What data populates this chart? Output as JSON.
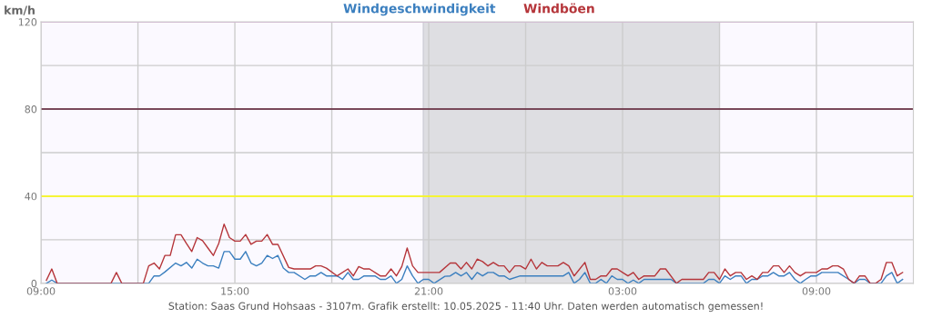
{
  "chart_data": {
    "type": "line",
    "ylabel": "km/h",
    "annotations": [
      "Station: Saas Grund Hohsaas - 3107m. Grafik erstellt: 10.05.2025 - 11:40 Uhr. Daten werden automatisch gemessen!"
    ],
    "series": [
      {
        "name": "Windgeschwindigkeit",
        "color": "#3b7fbf",
        "x": [
          "2025-05-09T09:10",
          "2025-05-09T09:20",
          "2025-05-09T09:30",
          "2025-05-09T12:20",
          "2025-05-09T12:30",
          "2025-05-09T12:40",
          "2025-05-09T12:50",
          "2025-05-09T13:10",
          "2025-05-09T13:20",
          "2025-05-09T13:30",
          "2025-05-09T13:40",
          "2025-05-09T13:50",
          "2025-05-09T14:00",
          "2025-05-09T14:10",
          "2025-05-09T14:20",
          "2025-05-09T14:30",
          "2025-05-09T14:40",
          "2025-05-09T14:50",
          "2025-05-09T15:00",
          "2025-05-09T15:10",
          "2025-05-09T15:20",
          "2025-05-09T15:30",
          "2025-05-09T15:40",
          "2025-05-09T15:50",
          "2025-05-09T16:00",
          "2025-05-09T16:10",
          "2025-05-09T16:20",
          "2025-05-09T16:30",
          "2025-05-09T16:40",
          "2025-05-09T16:50",
          "2025-05-09T17:10",
          "2025-05-09T17:20",
          "2025-05-09T17:30",
          "2025-05-09T17:40",
          "2025-05-09T17:50",
          "2025-05-09T18:10",
          "2025-05-09T18:20",
          "2025-05-09T18:30",
          "2025-05-09T18:40",
          "2025-05-09T18:50",
          "2025-05-09T19:00",
          "2025-05-09T19:20",
          "2025-05-09T19:30",
          "2025-05-09T19:40",
          "2025-05-09T19:50",
          "2025-05-09T20:00",
          "2025-05-09T20:10",
          "2025-05-09T20:20",
          "2025-05-09T20:30",
          "2025-05-09T20:40",
          "2025-05-09T20:50",
          "2025-05-09T21:00",
          "2025-05-09T21:10",
          "2025-05-09T21:30",
          "2025-05-09T21:40",
          "2025-05-09T21:50",
          "2025-05-09T22:00",
          "2025-05-09T22:10",
          "2025-05-09T22:20",
          "2025-05-09T22:30",
          "2025-05-09T22:40",
          "2025-05-09T22:50",
          "2025-05-09T23:00",
          "2025-05-09T23:10",
          "2025-05-09T23:20",
          "2025-05-09T23:30",
          "2025-05-09T23:50",
          "2025-05-10T01:10",
          "2025-05-10T01:20",
          "2025-05-10T01:30",
          "2025-05-10T01:40",
          "2025-05-10T01:50",
          "2025-05-10T02:00",
          "2025-05-10T02:10",
          "2025-05-10T02:20",
          "2025-05-10T02:30",
          "2025-05-10T02:40",
          "2025-05-10T02:50",
          "2025-05-10T03:00",
          "2025-05-10T03:10",
          "2025-05-10T03:20",
          "2025-05-10T03:30",
          "2025-05-10T03:40",
          "2025-05-10T04:30",
          "2025-05-10T04:40",
          "2025-05-10T05:30",
          "2025-05-10T05:40",
          "2025-05-10T05:50",
          "2025-05-10T06:00",
          "2025-05-10T06:10",
          "2025-05-10T06:20",
          "2025-05-10T06:30",
          "2025-05-10T06:40",
          "2025-05-10T06:50",
          "2025-05-10T07:00",
          "2025-05-10T07:10",
          "2025-05-10T07:20",
          "2025-05-10T07:30",
          "2025-05-10T07:40",
          "2025-05-10T07:50",
          "2025-05-10T08:00",
          "2025-05-10T08:10",
          "2025-05-10T08:20",
          "2025-05-10T08:30",
          "2025-05-10T08:40",
          "2025-05-10T08:50",
          "2025-05-10T09:00",
          "2025-05-10T09:10",
          "2025-05-10T09:40",
          "2025-05-10T10:00",
          "2025-05-10T10:10",
          "2025-05-10T10:20",
          "2025-05-10T10:30",
          "2025-05-10T10:40",
          "2025-05-10T11:00",
          "2025-05-10T11:10",
          "2025-05-10T11:20",
          "2025-05-10T11:30",
          "2025-05-10T11:40"
        ],
        "values": [
          0,
          1.5,
          0,
          0,
          3.4,
          3.4,
          5.2,
          9.3,
          8,
          9.6,
          7,
          11.1,
          9.3,
          8,
          8,
          7,
          14.6,
          14.6,
          11.1,
          11.1,
          14.6,
          9.3,
          8,
          9.3,
          12.8,
          11.4,
          12.8,
          7,
          5,
          5,
          1.8,
          3.4,
          3.4,
          5,
          3.4,
          3.4,
          1.8,
          5,
          1.8,
          1.8,
          3.4,
          3.4,
          1.8,
          1.8,
          3.4,
          0,
          1.8,
          8,
          3.4,
          0,
          1.8,
          1.8,
          0,
          3.2,
          3.4,
          5,
          3.4,
          5,
          1.8,
          5,
          3.4,
          5,
          5,
          3.4,
          3.4,
          1.8,
          3.4,
          3.4,
          5,
          0,
          1.8,
          5,
          0,
          0,
          1.8,
          0,
          3.4,
          1.8,
          1.8,
          0,
          1.5,
          0,
          1.8,
          1.8,
          0,
          0,
          1.8,
          1.8,
          0,
          3.4,
          1.8,
          3.4,
          3.4,
          0,
          1.8,
          1.8,
          3.4,
          3.4,
          5,
          3.4,
          3.4,
          5,
          1.8,
          0,
          1.8,
          3.4,
          3.4,
          5,
          5,
          1.8,
          0,
          1.8,
          1.8,
          0,
          0,
          3.4,
          5,
          0,
          1.8
        ]
      },
      {
        "name": "Windböen",
        "color": "#b5353a",
        "x": [
          "2025-05-09T09:10",
          "2025-05-09T09:20",
          "2025-05-09T09:30",
          "2025-05-09T11:10",
          "2025-05-09T11:20",
          "2025-05-09T11:30",
          "2025-05-09T12:10",
          "2025-05-09T12:20",
          "2025-05-09T12:30",
          "2025-05-09T12:40",
          "2025-05-09T12:50",
          "2025-05-09T13:00",
          "2025-05-09T13:10",
          "2025-05-09T13:20",
          "2025-05-09T13:30",
          "2025-05-09T13:40",
          "2025-05-09T13:50",
          "2025-05-09T14:00",
          "2025-05-09T14:10",
          "2025-05-09T14:20",
          "2025-05-09T14:30",
          "2025-05-09T14:40",
          "2025-05-09T14:50",
          "2025-05-09T15:00",
          "2025-05-09T15:10",
          "2025-05-09T15:20",
          "2025-05-09T15:30",
          "2025-05-09T15:40",
          "2025-05-09T15:50",
          "2025-05-09T16:00",
          "2025-05-09T16:10",
          "2025-05-09T16:20",
          "2025-05-09T16:40",
          "2025-05-09T16:50",
          "2025-05-09T17:20",
          "2025-05-09T17:30",
          "2025-05-09T17:40",
          "2025-05-09T17:50",
          "2025-05-09T18:10",
          "2025-05-09T18:30",
          "2025-05-09T18:40",
          "2025-05-09T18:50",
          "2025-05-09T19:00",
          "2025-05-09T19:10",
          "2025-05-09T19:30",
          "2025-05-09T19:40",
          "2025-05-09T19:50",
          "2025-05-09T20:00",
          "2025-05-09T20:10",
          "2025-05-09T20:20",
          "2025-05-09T20:30",
          "2025-05-09T20:40",
          "2025-05-09T21:20",
          "2025-05-09T21:40",
          "2025-05-09T21:50",
          "2025-05-09T22:00",
          "2025-05-09T22:10",
          "2025-05-09T22:20",
          "2025-05-09T22:30",
          "2025-05-09T22:40",
          "2025-05-09T22:50",
          "2025-05-09T23:00",
          "2025-05-09T23:10",
          "2025-05-09T23:20",
          "2025-05-09T23:30",
          "2025-05-09T23:40",
          "2025-05-09T23:50",
          "2025-05-10T00:00",
          "2025-05-10T00:10",
          "2025-05-10T00:20",
          "2025-05-10T00:30",
          "2025-05-10T00:40",
          "2025-05-10T01:00",
          "2025-05-10T01:10",
          "2025-05-10T01:20",
          "2025-05-10T01:30",
          "2025-05-10T01:50",
          "2025-05-10T02:00",
          "2025-05-10T02:10",
          "2025-05-10T02:20",
          "2025-05-10T02:30",
          "2025-05-10T02:40",
          "2025-05-10T02:50",
          "2025-05-10T03:00",
          "2025-05-10T03:10",
          "2025-05-10T03:20",
          "2025-05-10T03:30",
          "2025-05-10T03:40",
          "2025-05-10T04:00",
          "2025-05-10T04:10",
          "2025-05-10T04:20",
          "2025-05-10T04:40",
          "2025-05-10T04:50",
          "2025-05-10T05:30",
          "2025-05-10T05:40",
          "2025-05-10T05:50",
          "2025-05-10T06:00",
          "2025-05-10T06:10",
          "2025-05-10T06:20",
          "2025-05-10T06:30",
          "2025-05-10T06:40",
          "2025-05-10T06:50",
          "2025-05-10T07:00",
          "2025-05-10T07:10",
          "2025-05-10T07:20",
          "2025-05-10T07:30",
          "2025-05-10T07:40",
          "2025-05-10T07:50",
          "2025-05-10T08:00",
          "2025-05-10T08:10",
          "2025-05-10T08:20",
          "2025-05-10T08:30",
          "2025-05-10T08:40",
          "2025-05-10T09:00",
          "2025-05-10T09:10",
          "2025-05-10T09:20",
          "2025-05-10T09:30",
          "2025-05-10T09:40",
          "2025-05-10T09:50",
          "2025-05-10T10:00",
          "2025-05-10T10:10",
          "2025-05-10T10:20",
          "2025-05-10T10:30",
          "2025-05-10T10:40",
          "2025-05-10T10:50",
          "2025-05-10T11:00",
          "2025-05-10T11:10",
          "2025-05-10T11:20",
          "2025-05-10T11:30",
          "2025-05-10T11:40"
        ],
        "values": [
          1.4,
          6.6,
          0,
          0,
          5,
          0,
          0,
          8,
          9.3,
          6.6,
          12.8,
          12.8,
          22.3,
          22.3,
          18.3,
          14.6,
          21,
          19.6,
          16.2,
          12.8,
          18.3,
          27.2,
          21,
          19.4,
          19.4,
          22.4,
          17.9,
          19.4,
          19.4,
          22.4,
          17.9,
          17.9,
          7.3,
          6.6,
          6.6,
          8,
          8,
          7,
          3.4,
          6.6,
          3.4,
          7.7,
          6.6,
          6.6,
          3.4,
          3.4,
          6.6,
          3.4,
          7.7,
          16.2,
          8,
          5,
          5,
          9.3,
          9.3,
          6.6,
          9.6,
          6.6,
          11.1,
          10,
          8,
          9.6,
          8,
          8,
          5,
          8,
          8,
          6.6,
          11.1,
          6.6,
          9.6,
          8,
          8,
          9.6,
          8,
          3.4,
          9.6,
          1.8,
          1.8,
          3.4,
          3.4,
          6.6,
          6.6,
          5,
          3.4,
          5,
          1.8,
          3.4,
          3.4,
          6.6,
          6.6,
          0,
          1.8,
          1.8,
          5,
          5,
          1.8,
          6.6,
          3.4,
          5,
          5,
          1.8,
          3.4,
          1.8,
          5,
          5,
          8,
          8,
          5,
          8,
          5,
          3.4,
          5,
          5,
          6.6,
          6.6,
          8,
          8,
          6.6,
          1.8,
          0,
          3.4,
          3.4,
          0,
          0,
          1.8,
          9.6,
          9.6,
          3.4,
          5
        ]
      }
    ],
    "xlim": [
      "2025-05-09T09:00",
      "2025-05-10T12:00"
    ],
    "xticks": [
      {
        "value": "2025-05-09T09:00",
        "label": "09:00"
      },
      {
        "value": "2025-05-09T12:00",
        "label": null
      },
      {
        "value": "2025-05-09T15:00",
        "label": "15:00"
      },
      {
        "value": "2025-05-09T18:00",
        "label": null
      },
      {
        "value": "2025-05-09T21:00",
        "label": "21:00"
      },
      {
        "value": "2025-05-10T00:00",
        "label": null
      },
      {
        "value": "2025-05-10T03:00",
        "label": "03:00"
      },
      {
        "value": "2025-05-10T06:00",
        "label": null
      },
      {
        "value": "2025-05-10T09:00",
        "label": "09:00"
      }
    ],
    "ylim": [
      0,
      120
    ],
    "yticks": [
      0,
      {
        "value": 20,
        "label": null
      },
      40,
      {
        "value": 60,
        "label": null
      },
      80,
      {
        "value": 100,
        "label": null
      },
      120
    ],
    "bands": [
      {
        "axis": "x",
        "from": "2025-05-09T20:50",
        "to": "2025-05-10T06:00",
        "color": "#dedee2"
      }
    ],
    "ref_lines": [
      {
        "axis": "x",
        "value": "2025-05-09T20:50",
        "color": "#cfcfd6"
      },
      {
        "axis": "y",
        "value": 40,
        "color": "#ffff00"
      },
      {
        "axis": "y",
        "value": 80,
        "color": "#5a1a30"
      },
      {
        "axis": "y",
        "value": 120,
        "color": "#ee66ee"
      }
    ],
    "grid": true,
    "legend": "top",
    "marker": "none",
    "line_style": "solid"
  }
}
